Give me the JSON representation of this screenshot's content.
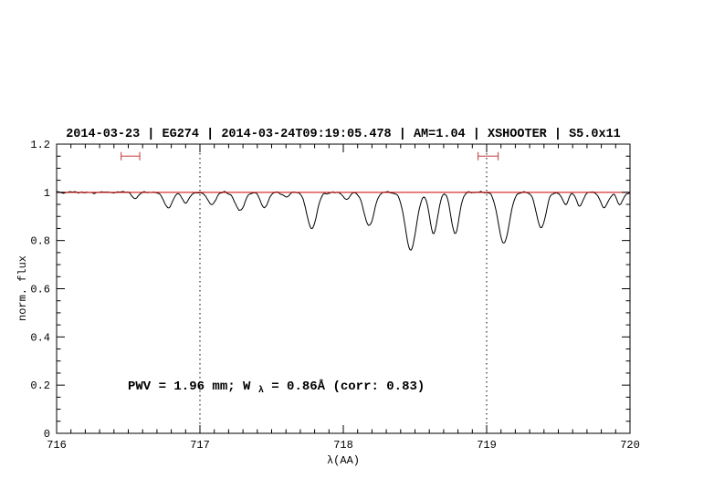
{
  "chart_data": {
    "type": "line",
    "title": "2014-03-23 | EG274 | 2014-03-24T09:19:05.478 | AM=1.04 | XSHOOTER | S5.0x11",
    "xlabel": "λ(AA)",
    "ylabel": "norm. flux",
    "xlim": [
      716,
      720
    ],
    "ylim": [
      0,
      1.2
    ],
    "x_ticks": [
      716,
      717,
      718,
      719,
      720
    ],
    "y_ticks": [
      0,
      0.2,
      0.4,
      0.6,
      0.8,
      1,
      1.2
    ],
    "grid": "off",
    "continuum_level": 1.0,
    "guide_lines_x": [
      717,
      719
    ],
    "window_markers": [
      {
        "x1": 716.45,
        "x2": 716.58,
        "y": 1.15
      },
      {
        "x1": 718.94,
        "x2": 719.08,
        "y": 1.15
      }
    ],
    "absorption_lines": [
      {
        "c": 716.55,
        "d": 0.025,
        "s": 0.022
      },
      {
        "c": 716.78,
        "d": 0.065,
        "s": 0.028
      },
      {
        "c": 716.9,
        "d": 0.045,
        "s": 0.022
      },
      {
        "c": 717.08,
        "d": 0.05,
        "s": 0.028
      },
      {
        "c": 717.28,
        "d": 0.075,
        "s": 0.032
      },
      {
        "c": 717.45,
        "d": 0.065,
        "s": 0.026
      },
      {
        "c": 717.6,
        "d": 0.02,
        "s": 0.02
      },
      {
        "c": 717.78,
        "d": 0.15,
        "s": 0.034
      },
      {
        "c": 718.02,
        "d": 0.03,
        "s": 0.022
      },
      {
        "c": 718.18,
        "d": 0.14,
        "s": 0.034
      },
      {
        "c": 718.47,
        "d": 0.24,
        "s": 0.038
      },
      {
        "c": 718.63,
        "d": 0.17,
        "s": 0.028
      },
      {
        "c": 718.78,
        "d": 0.17,
        "s": 0.028
      },
      {
        "c": 719.12,
        "d": 0.21,
        "s": 0.038
      },
      {
        "c": 719.38,
        "d": 0.15,
        "s": 0.032
      },
      {
        "c": 719.55,
        "d": 0.05,
        "s": 0.022
      },
      {
        "c": 719.65,
        "d": 0.055,
        "s": 0.022
      },
      {
        "c": 719.82,
        "d": 0.065,
        "s": 0.026
      },
      {
        "c": 719.93,
        "d": 0.05,
        "s": 0.022
      }
    ],
    "sampling": {
      "step": 0.008,
      "noise_amplitude": 0.006,
      "seed": 3
    }
  },
  "annotation": {
    "pre": "PWV = 1.96 mm; W",
    "sub": "λ",
    "post": " = 0.86Å (corr: 0.83)"
  },
  "colors": {
    "title": "#0000cd",
    "annotation": "#0000cd",
    "continuum": "#cc0000",
    "marker": "#cc5555",
    "spectrum": "#000000",
    "guide": "#000000"
  }
}
